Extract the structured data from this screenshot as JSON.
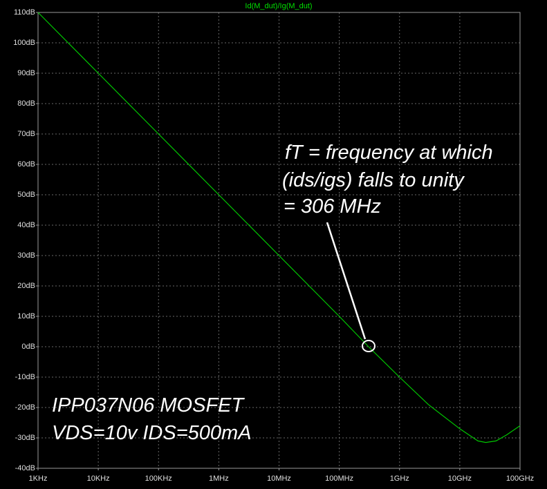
{
  "chart_data": {
    "type": "line",
    "title": "Id(M_dut)/Ig(M_dut)",
    "x": [
      1000,
      10000,
      100000,
      1000000,
      10000000,
      100000000,
      306000000,
      1000000000,
      3000000000,
      10000000000,
      20000000000,
      27000000000,
      40000000000,
      60000000000,
      100000000000
    ],
    "series": [
      {
        "name": "Id(M_dut)/Ig(M_dut)",
        "color": "#00c800",
        "values": [
          110,
          90,
          70,
          50,
          30,
          10,
          0,
          -10,
          -19,
          -27,
          -31,
          -31.5,
          -31,
          -29,
          -26
        ]
      }
    ],
    "xscale": "log",
    "xlim": [
      1000,
      100000000000
    ],
    "xticks": [
      {
        "value": 1000,
        "label": "1KHz"
      },
      {
        "value": 10000,
        "label": "10KHz"
      },
      {
        "value": 100000,
        "label": "100KHz"
      },
      {
        "value": 1000000,
        "label": "1MHz"
      },
      {
        "value": 10000000,
        "label": "10MHz"
      },
      {
        "value": 100000000,
        "label": "100MHz"
      },
      {
        "value": 1000000000,
        "label": "1GHz"
      },
      {
        "value": 10000000000,
        "label": "10GHz"
      },
      {
        "value": 100000000000,
        "label": "100GHz"
      }
    ],
    "ylim": [
      -40,
      110
    ],
    "yticks": [
      {
        "value": -40,
        "label": "-40dB"
      },
      {
        "value": -30,
        "label": "-30dB"
      },
      {
        "value": -20,
        "label": "-20dB"
      },
      {
        "value": -10,
        "label": "-10dB"
      },
      {
        "value": 0,
        "label": "0dB"
      },
      {
        "value": 10,
        "label": "10dB"
      },
      {
        "value": 20,
        "label": "20dB"
      },
      {
        "value": 30,
        "label": "30dB"
      },
      {
        "value": 40,
        "label": "40dB"
      },
      {
        "value": 50,
        "label": "50dB"
      },
      {
        "value": 60,
        "label": "60dB"
      },
      {
        "value": 70,
        "label": "70dB"
      },
      {
        "value": 80,
        "label": "80dB"
      },
      {
        "value": 90,
        "label": "90dB"
      },
      {
        "value": 100,
        "label": "100dB"
      },
      {
        "value": 110,
        "label": "110dB"
      }
    ],
    "grid": true,
    "annotations": {
      "ft": [
        "fT = frequency at which",
        "(ids/igs) falls to unity",
        "= 306 MHz"
      ],
      "device": [
        "IPP037N06  MOSFET",
        "VDS=10v  IDS=500mA"
      ]
    }
  }
}
